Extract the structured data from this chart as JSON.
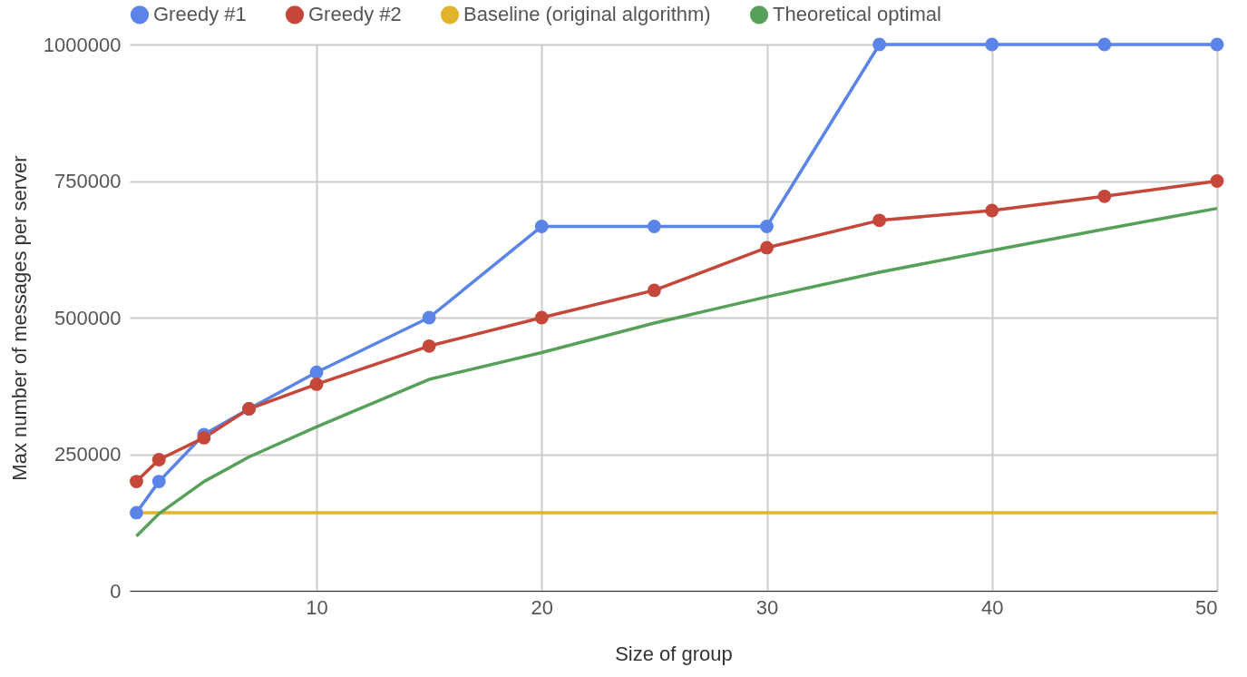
{
  "chart_data": {
    "type": "line",
    "xlabel": "Size of group",
    "ylabel": "Max number of messages per server",
    "xlim": [
      1.7,
      50
    ],
    "xticks": [
      10,
      20,
      30,
      40,
      50
    ],
    "ylim": [
      0,
      1000000
    ],
    "yticks": [
      0,
      250000,
      500000,
      750000,
      1000000
    ],
    "grid": true,
    "legend": "top",
    "line_style": "solid",
    "series": [
      {
        "name": "Greedy #1",
        "color": "#5b84e8",
        "marker": "circle",
        "x": [
          2,
          3,
          5,
          7,
          10,
          15,
          20,
          25,
          30,
          35,
          40,
          45,
          50
        ],
        "values": [
          143000,
          200000,
          286000,
          333000,
          400000,
          500000,
          667000,
          667000,
          667000,
          1000000,
          1000000,
          1000000,
          1000000
        ]
      },
      {
        "name": "Greedy #2",
        "color": "#c5473a",
        "marker": "circle",
        "x": [
          2,
          3,
          5,
          7,
          10,
          15,
          20,
          25,
          30,
          35,
          40,
          45,
          50
        ],
        "values": [
          200000,
          240000,
          280000,
          333000,
          378000,
          448000,
          500000,
          550000,
          628000,
          678000,
          696000,
          722000,
          750000
        ]
      },
      {
        "name": "Baseline (original algorithm)",
        "color": "#e2b42b",
        "marker": "none",
        "x": [
          2,
          50
        ],
        "values": [
          143000,
          143000
        ]
      },
      {
        "name": "Theoretical optimal",
        "color": "#57a05a",
        "marker": "none",
        "x": [
          2,
          3,
          5,
          7,
          10,
          15,
          20,
          25,
          30,
          35,
          40,
          45,
          50
        ],
        "values": [
          100000,
          141000,
          200000,
          245000,
          300000,
          387000,
          436000,
          490000,
          538000,
          583000,
          623000,
          662000,
          700000
        ]
      }
    ]
  }
}
